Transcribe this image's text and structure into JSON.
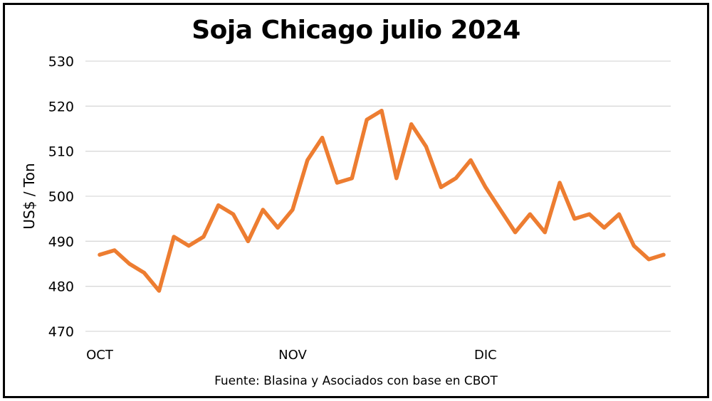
{
  "chart_data": {
    "type": "line",
    "title": "Soja Chicago julio 2024",
    "ylabel": "US$ / Ton",
    "xlabel": "",
    "ylim": [
      470,
      530
    ],
    "yticks": [
      470,
      480,
      490,
      500,
      510,
      520,
      530
    ],
    "x_tick_labels": [
      {
        "label": "OCT",
        "index": 0
      },
      {
        "label": "NOV",
        "index": 13
      },
      {
        "label": "DIC",
        "index": 26
      }
    ],
    "grid": true,
    "legend": "none",
    "series": [
      {
        "color": "#ED7D31",
        "values": [
          487,
          488,
          485,
          483,
          479,
          491,
          489,
          491,
          498,
          496,
          490,
          497,
          493,
          497,
          508,
          513,
          503,
          504,
          517,
          519,
          504,
          516,
          511,
          502,
          504,
          508,
          502,
          497,
          492,
          496,
          492,
          503,
          495,
          496,
          493,
          496,
          489,
          486,
          487
        ]
      }
    ],
    "source": "Fuente: Blasina y Asociados con base en CBOT"
  }
}
